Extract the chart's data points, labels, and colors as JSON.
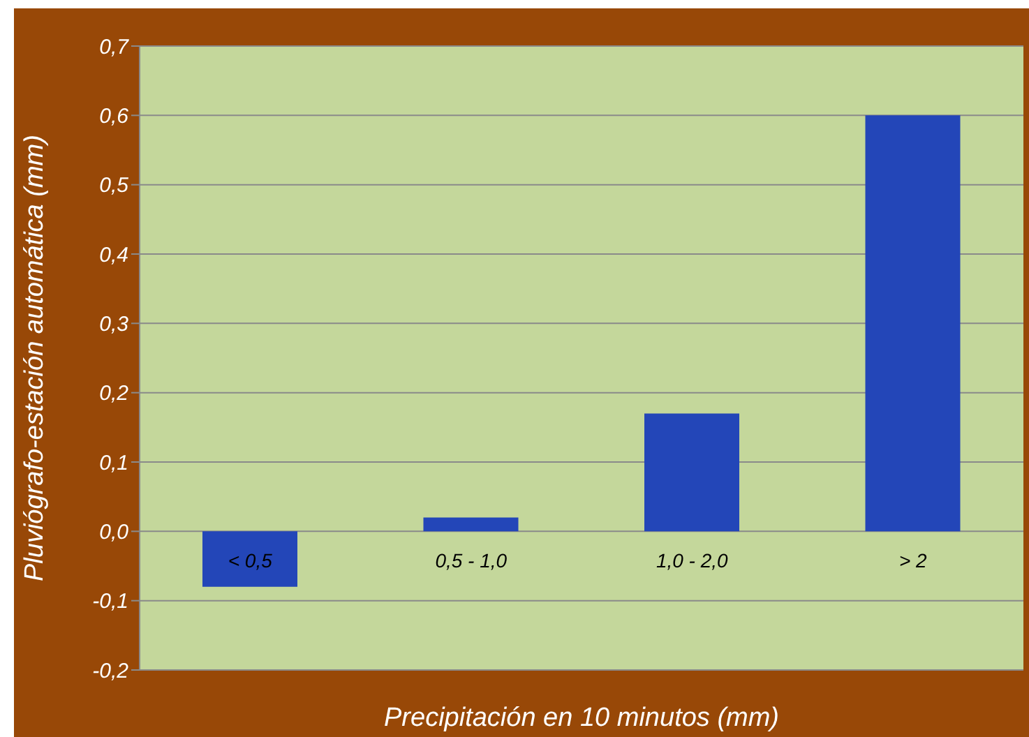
{
  "chart_data": {
    "type": "bar",
    "xlabel": "Precipitación en 10 minutos (mm)",
    "ylabel": "Pluviógrafo-estación automática (mm)",
    "categories": [
      "< 0,5",
      "0,5 - 1,0",
      "1,0 - 2,0",
      "> 2"
    ],
    "values": [
      -0.08,
      0.02,
      0.17,
      0.6
    ],
    "color": "#2346b8",
    "ylim": [
      -0.2,
      0.7
    ],
    "yticks": [
      {
        "value": -0.2,
        "label": "-0,2"
      },
      {
        "value": -0.1,
        "label": "-0,1"
      },
      {
        "value": 0,
        "label": "0,0"
      },
      {
        "value": 0.1,
        "label": "0,1"
      },
      {
        "value": 0.2,
        "label": "0,2"
      },
      {
        "value": 0.3,
        "label": "0,3"
      },
      {
        "value": 0.4,
        "label": "0,4"
      },
      {
        "value": 0.5,
        "label": "0,5"
      },
      {
        "value": 0.6,
        "label": "0,6"
      },
      {
        "value": 0.7,
        "label": "0,7"
      }
    ],
    "grid": "y",
    "legend": false
  }
}
